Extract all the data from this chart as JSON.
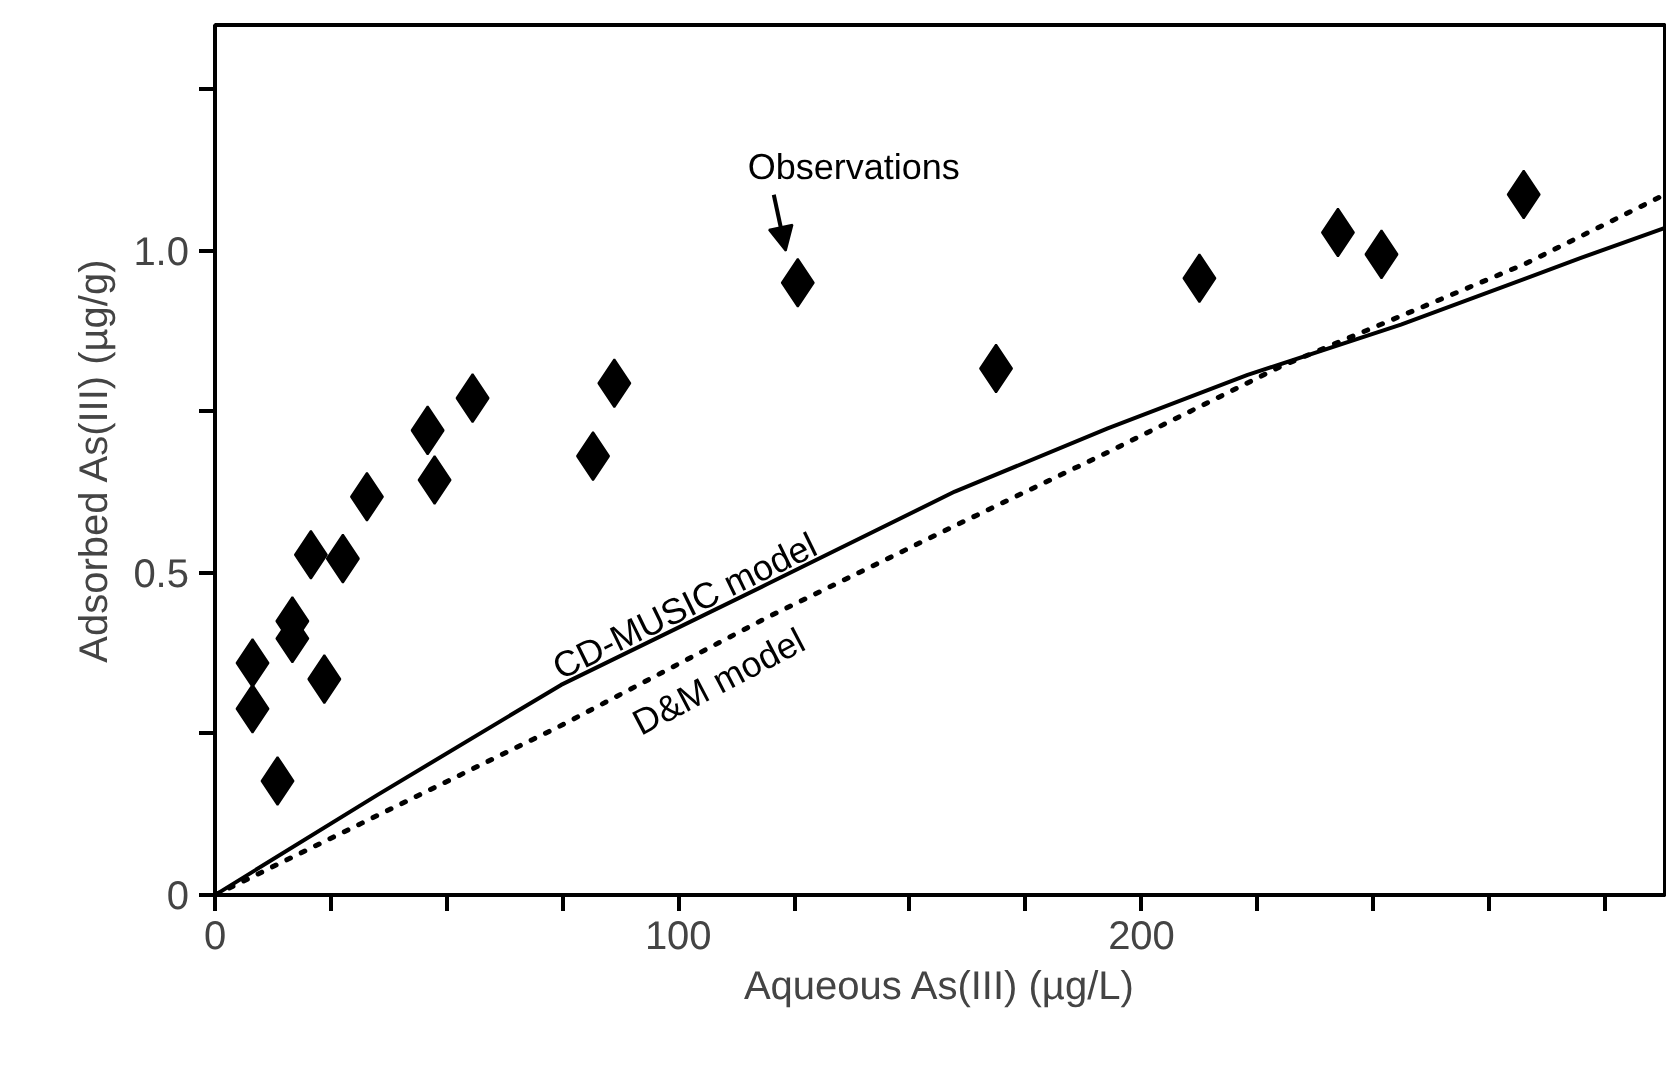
{
  "chart_data": {
    "type": "scatter",
    "xlabel": "Aqueous As(III) (µg/L)",
    "ylabel": "Adsorbed As(III) (µg/g)",
    "xlim": [
      0,
      313
    ],
    "ylim": [
      0,
      1.35
    ],
    "xticks": [
      0,
      {
        "value": 25,
        "label": null
      },
      {
        "value": 50,
        "label": null
      },
      {
        "value": 75,
        "label": null
      },
      100,
      {
        "value": 125,
        "label": null
      },
      {
        "value": 150,
        "label": null
      },
      {
        "value": 175,
        "label": null
      },
      200,
      {
        "value": 225,
        "label": null
      },
      {
        "value": 250,
        "label": null
      },
      {
        "value": 275,
        "label": null
      },
      {
        "value": 300,
        "label": null
      }
    ],
    "yticks": [
      0,
      {
        "value": 0.25,
        "label": null
      },
      {
        "value": 0.5,
        "label": "0.5"
      },
      {
        "value": 0.75,
        "label": null
      },
      {
        "value": 1.0,
        "label": "1.0"
      },
      {
        "value": 1.25,
        "label": null
      }
    ],
    "grid": false,
    "series": [
      {
        "name": "Observations",
        "color": "#000000",
        "marker": "diamond",
        "x": [
          8.1,
          8.1,
          13.5,
          16.7,
          16.7,
          20.7,
          23.6,
          27.6,
          32.8,
          45.9,
          47.4,
          55.6,
          81.6,
          86.2,
          125.8,
          168.6,
          212.5,
          242.4,
          251.8,
          282.5
        ],
        "values": [
          0.36,
          0.289,
          0.177,
          0.425,
          0.398,
          0.528,
          0.335,
          0.522,
          0.618,
          0.721,
          0.644,
          0.771,
          0.681,
          0.794,
          0.95,
          0.817,
          0.957,
          1.028,
          0.994,
          1.087
        ]
      },
      {
        "name": "CD-MUSIC model",
        "type": "line",
        "color": "#000000",
        "line_style": "solid",
        "x": [
          0,
          35,
          74.7,
          118.8,
          159.7,
          192.7,
          222.9,
          256,
          295,
          313
        ],
        "values": [
          0,
          0.155,
          0.326,
          0.481,
          0.626,
          0.724,
          0.807,
          0.885,
          0.989,
          1.035
        ]
      },
      {
        "name": "D&M model",
        "type": "line",
        "color": "#000000",
        "line_style": "dotted",
        "x": [
          0,
          75,
          119,
          160,
          193,
          230,
          283,
          313
        ],
        "values": [
          0,
          0.264,
          0.43,
          0.574,
          0.688,
          0.82,
          0.98,
          1.087
        ]
      }
    ]
  }
}
